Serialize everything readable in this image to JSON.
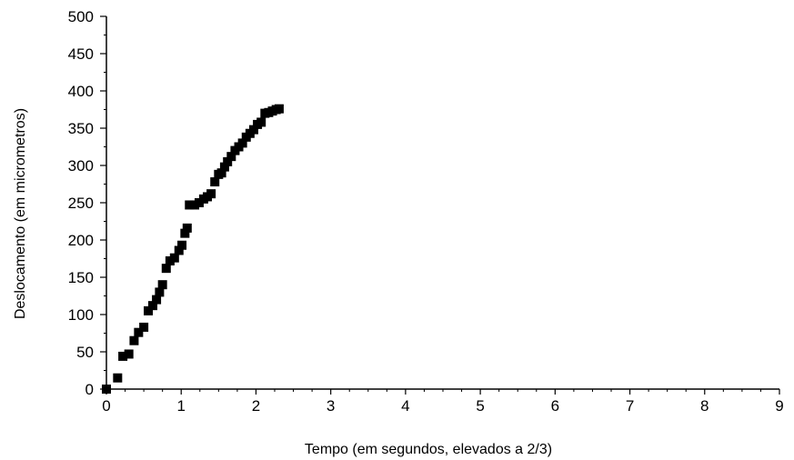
{
  "chart_data": {
    "type": "scatter",
    "title": "",
    "xlabel": "Tempo (em segundos, elevados a 2/3)",
    "ylabel": "Deslocamento (em micrometros)",
    "xlim": [
      0,
      9
    ],
    "ylim": [
      0,
      500
    ],
    "x_ticks": [
      "0",
      "1",
      "2",
      "3",
      "4",
      "5",
      "6",
      "7",
      "8",
      "9"
    ],
    "y_ticks": [
      "0",
      "50",
      "100",
      "150",
      "200",
      "250",
      "300",
      "350",
      "400",
      "450",
      "500"
    ],
    "grid": false,
    "marker": "square",
    "color": "#000000",
    "series": [
      {
        "x": [
          0.0,
          0.15,
          0.22,
          0.3,
          0.37,
          0.43,
          0.5,
          0.56,
          0.62,
          0.67,
          0.71,
          0.75,
          0.8,
          0.85,
          0.91,
          0.97,
          1.01,
          1.05,
          1.08,
          1.11,
          1.18,
          1.24,
          1.3,
          1.35,
          1.4,
          1.45,
          1.5,
          1.54,
          1.58,
          1.62,
          1.67,
          1.72,
          1.77,
          1.82,
          1.87,
          1.92,
          1.97,
          2.02,
          2.07,
          2.12,
          2.17,
          2.22,
          2.27,
          2.31
        ],
        "y": [
          0,
          15,
          44,
          47,
          65,
          76,
          83,
          105,
          112,
          120,
          130,
          140,
          162,
          172,
          176,
          186,
          193,
          209,
          216,
          247,
          247,
          250,
          255,
          258,
          262,
          278,
          288,
          290,
          298,
          305,
          312,
          320,
          325,
          330,
          338,
          343,
          348,
          355,
          358,
          370,
          371,
          373,
          375,
          376
        ]
      }
    ]
  }
}
